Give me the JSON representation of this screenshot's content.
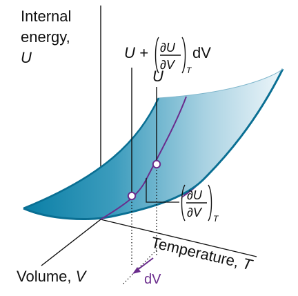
{
  "labels": {
    "internal_energy_line1": "Internal",
    "internal_energy_line2": "energy,",
    "internal_energy_symbol": "U",
    "volume_text": "Volume, ",
    "volume_symbol": "V",
    "temperature_text": "Temperature, ",
    "temperature_symbol": "T",
    "u_point_label": "U",
    "dv_label": "dV",
    "derivative": {
      "lead": "U +",
      "numerator": "∂U",
      "denominator": "∂V",
      "subscript": "T",
      "tail": "dV"
    },
    "slope": {
      "numerator": "∂U",
      "denominator": "∂V",
      "subscript": "T"
    }
  },
  "colors": {
    "surface_dark": "#0a7fa6",
    "surface_light": "#eef6fa",
    "purple": "#6a2c8c",
    "axis": "#111111"
  }
}
